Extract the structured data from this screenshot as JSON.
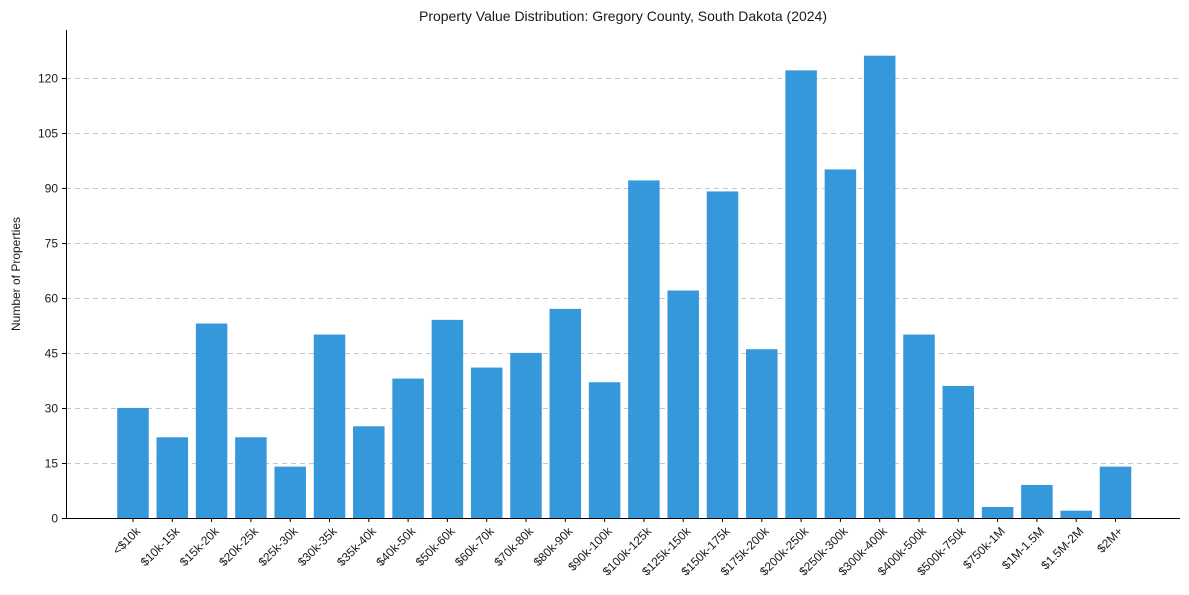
{
  "chart_data": {
    "type": "bar",
    "title": "Property Value Distribution: Gregory County, South Dakota (2024)",
    "xlabel": "",
    "ylabel": "Number of Properties",
    "ylim": [
      0,
      133
    ],
    "yticks": [
      0,
      15,
      30,
      45,
      60,
      75,
      90,
      105,
      120
    ],
    "grid": "y",
    "bar_color": "#3498db",
    "categories": [
      "<$10k",
      "$10k-15k",
      "$15k-20k",
      "$20k-25k",
      "$25k-30k",
      "$30k-35k",
      "$35k-40k",
      "$40k-50k",
      "$50k-60k",
      "$60k-70k",
      "$70k-80k",
      "$80k-90k",
      "$90k-100k",
      "$100k-125k",
      "$125k-150k",
      "$150k-175k",
      "$175k-200k",
      "$200k-250k",
      "$250k-300k",
      "$300k-400k",
      "$400k-500k",
      "$500k-750k",
      "$750k-1M",
      "$1M-1.5M",
      "$1.5M-2M",
      "$2M+"
    ],
    "values": [
      30,
      22,
      53,
      22,
      14,
      50,
      25,
      38,
      54,
      41,
      45,
      57,
      37,
      92,
      62,
      89,
      46,
      122,
      95,
      126,
      50,
      36,
      3,
      9,
      2,
      14
    ]
  }
}
